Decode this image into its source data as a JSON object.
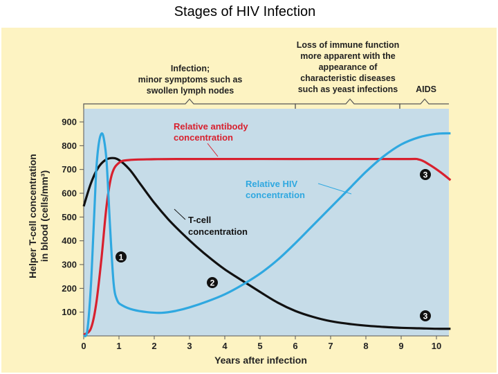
{
  "title": "Stages of HIV Infection",
  "chart_data": {
    "type": "line",
    "x": [],
    "xlabel": "Years after infection",
    "ylabel": [
      "Helper T-cell concentration",
      "in blood (cells/mm³)"
    ],
    "xlim": [
      0,
      10.4
    ],
    "ylim": [
      0,
      950
    ],
    "xticks": [
      "0",
      "1",
      "2",
      "3",
      "4",
      "5",
      "6",
      "7",
      "8",
      "9",
      "10"
    ],
    "yticks": [
      "100",
      "200",
      "300",
      "400",
      "500",
      "600",
      "700",
      "800",
      "900"
    ],
    "grid": false,
    "colors": {
      "background": "#c6dce8",
      "panel": "#fdf3c2",
      "tcell": "#111111",
      "antibody": "#d8202e",
      "hiv": "#2fa8e0"
    },
    "series": [
      {
        "key": "tcell",
        "color": "#111111",
        "points": [
          [
            0,
            545
          ],
          [
            0.2,
            640
          ],
          [
            0.4,
            705
          ],
          [
            0.6,
            738
          ],
          [
            0.8,
            748
          ],
          [
            1.0,
            740
          ],
          [
            1.3,
            700
          ],
          [
            1.6,
            640
          ],
          [
            2.0,
            560
          ],
          [
            2.4,
            490
          ],
          [
            2.8,
            430
          ],
          [
            3.2,
            375
          ],
          [
            3.6,
            325
          ],
          [
            4.0,
            280
          ],
          [
            4.5,
            232
          ],
          [
            5.0,
            185
          ],
          [
            5.5,
            140
          ],
          [
            6.0,
            105
          ],
          [
            6.5,
            80
          ],
          [
            7.0,
            62
          ],
          [
            7.5,
            51
          ],
          [
            8.0,
            43
          ],
          [
            8.5,
            38
          ],
          [
            9.0,
            34
          ],
          [
            9.5,
            32
          ],
          [
            10.0,
            30
          ],
          [
            10.4,
            30
          ]
        ]
      },
      {
        "key": "antibody",
        "color": "#d8202e",
        "points": [
          [
            0,
            5
          ],
          [
            0.2,
            30
          ],
          [
            0.35,
            130
          ],
          [
            0.5,
            320
          ],
          [
            0.65,
            550
          ],
          [
            0.8,
            680
          ],
          [
            1.0,
            728
          ],
          [
            1.3,
            740
          ],
          [
            2.0,
            743
          ],
          [
            3.0,
            744
          ],
          [
            6.0,
            744
          ],
          [
            9.0,
            744
          ],
          [
            9.5,
            742
          ],
          [
            9.8,
            720
          ],
          [
            10.1,
            690
          ],
          [
            10.4,
            655
          ]
        ]
      },
      {
        "key": "hiv",
        "color": "#2fa8e0",
        "points": [
          [
            0,
            0
          ],
          [
            0.1,
            20
          ],
          [
            0.2,
            200
          ],
          [
            0.28,
            450
          ],
          [
            0.35,
            680
          ],
          [
            0.42,
            800
          ],
          [
            0.5,
            850
          ],
          [
            0.57,
            830
          ],
          [
            0.65,
            730
          ],
          [
            0.75,
            450
          ],
          [
            0.85,
            220
          ],
          [
            0.95,
            150
          ],
          [
            1.1,
            128
          ],
          [
            1.4,
            110
          ],
          [
            1.8,
            100
          ],
          [
            2.2,
            97
          ],
          [
            2.6,
            105
          ],
          [
            3.0,
            120
          ],
          [
            3.5,
            145
          ],
          [
            4.0,
            175
          ],
          [
            4.5,
            215
          ],
          [
            5.0,
            262
          ],
          [
            5.5,
            320
          ],
          [
            6.0,
            390
          ],
          [
            6.5,
            465
          ],
          [
            7.0,
            540
          ],
          [
            7.5,
            615
          ],
          [
            8.0,
            690
          ],
          [
            8.5,
            755
          ],
          [
            9.0,
            805
          ],
          [
            9.5,
            835
          ],
          [
            10.0,
            850
          ],
          [
            10.4,
            852
          ]
        ]
      }
    ]
  },
  "annotations": {
    "antibody_line1": "Relative antibody",
    "antibody_line2": "concentration",
    "hiv_line1": "Relative HIV",
    "hiv_line2": "concentration",
    "tcell_line1": "T-cell",
    "tcell_line2": "concentration",
    "marker_1": "1",
    "marker_2": "2",
    "marker_3a": "3",
    "marker_3b": "3"
  },
  "stages": {
    "stage1": [
      "Infection;",
      "minor symptoms such as",
      "swollen lymph nodes"
    ],
    "stage2": [
      "Loss of immune function",
      "more apparent with the",
      "appearance of",
      "characteristic diseases",
      "such as yeast infections"
    ],
    "stage3": [
      "AIDS"
    ]
  }
}
